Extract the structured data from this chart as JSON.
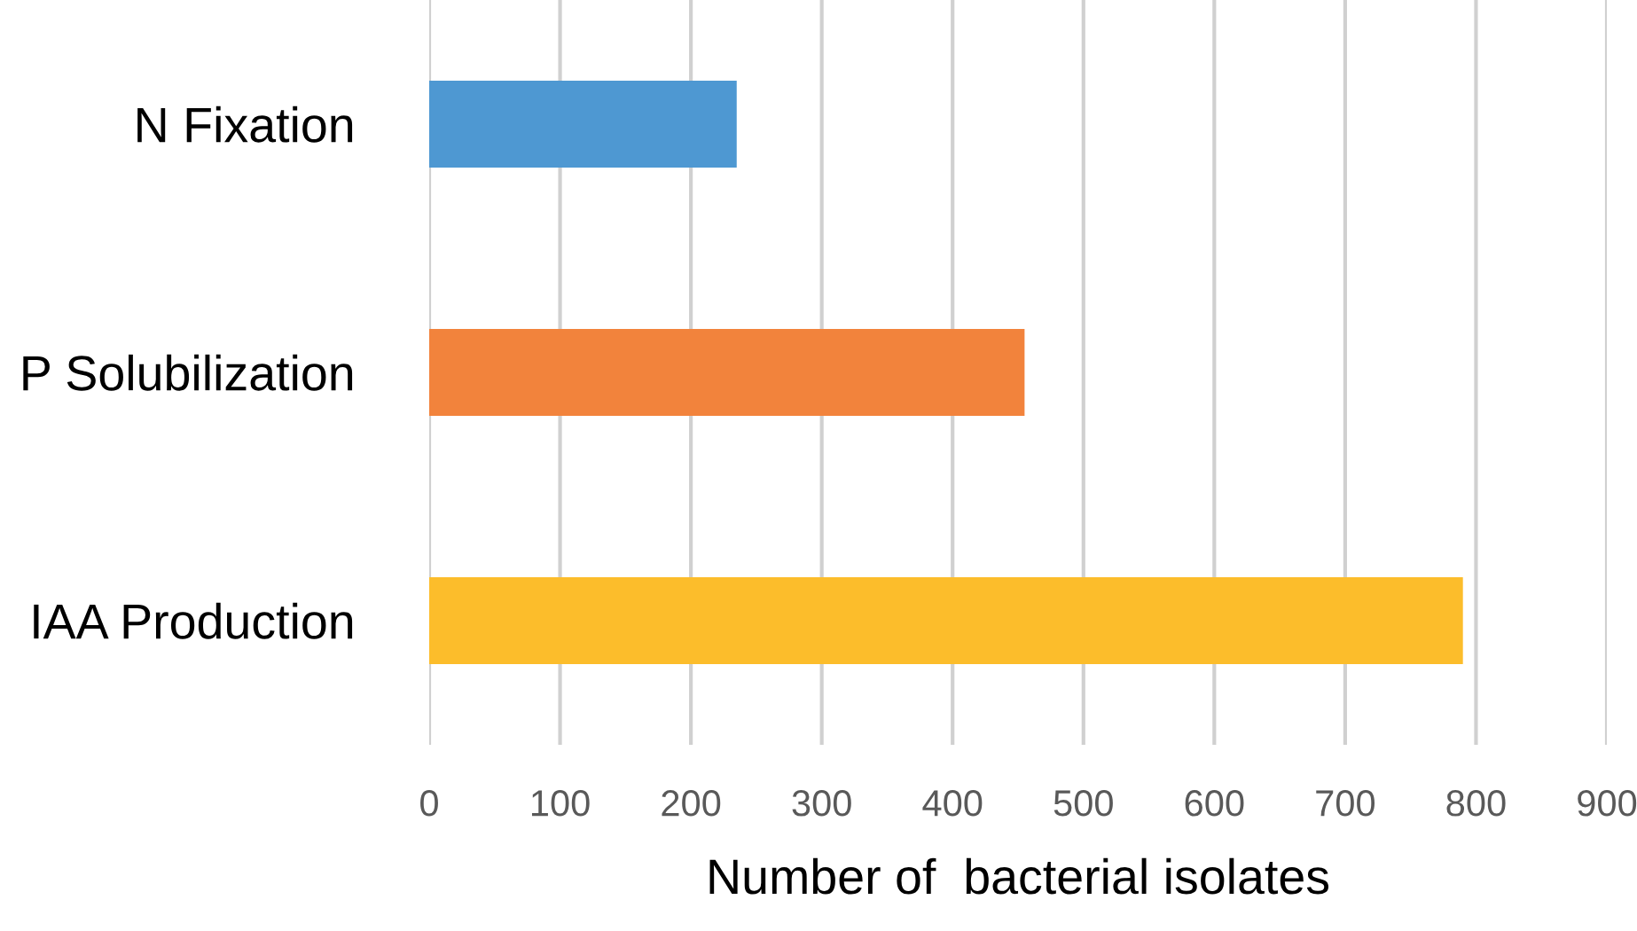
{
  "chart_data": {
    "type": "bar",
    "orientation": "horizontal",
    "xlabel": "Number of  bacterial isolates",
    "categories": [
      "N Fixation",
      "P Solubilization",
      "IAA Production"
    ],
    "values": [
      235,
      455,
      790
    ],
    "colors": [
      "#4e98d2",
      "#f2833c",
      "#fcbd2b"
    ],
    "xlim": [
      0,
      900
    ],
    "xticks": [
      0,
      100,
      200,
      300,
      400,
      500,
      600,
      700,
      800,
      900
    ],
    "grid": "x",
    "legend": false
  }
}
